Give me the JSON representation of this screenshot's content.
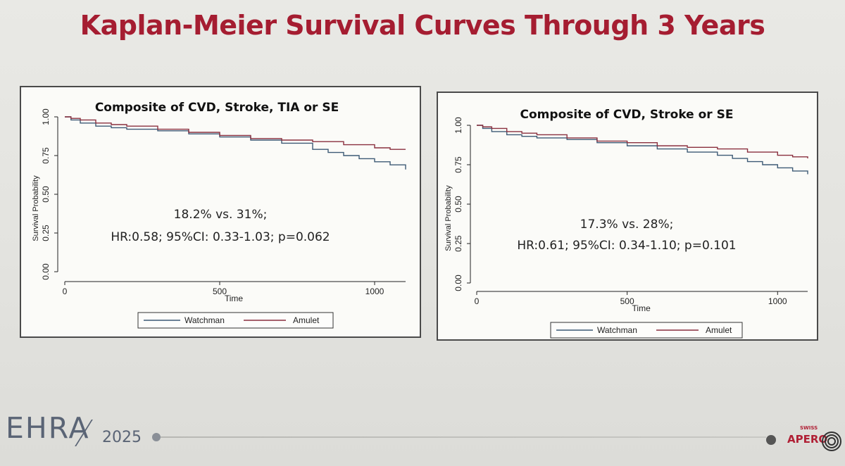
{
  "slide": {
    "title": "Kaplan-Meier Survival Curves Through 3 Years",
    "logo": {
      "brand": "EHRA",
      "year": "2025"
    },
    "partner_logo": {
      "swiss": "SWISS",
      "name": "APERO"
    }
  },
  "colors": {
    "watchman": "#3d5a75",
    "amulet": "#8a2f3e",
    "title": "#a51d31"
  },
  "chart_data": [
    {
      "type": "line",
      "title": "Composite of CVD, Stroke, TIA or SE",
      "xlabel": "Time",
      "ylabel": "Survival Probability",
      "xlim": [
        0,
        1100
      ],
      "ylim": [
        0,
        1
      ],
      "x_ticks": [
        "0",
        "500",
        "1000"
      ],
      "x_tick_values": [
        0,
        500,
        1000
      ],
      "y_ticks": [
        "0.00",
        "0.25",
        "0.50",
        "0.75",
        "1.00"
      ],
      "y_tick_values": [
        0,
        0.25,
        0.5,
        0.75,
        1.0
      ],
      "annotation_line1": "18.2% vs. 31%;",
      "annotation_line2": "HR:0.58; 95%CI: 0.33-1.03; p=0.062",
      "legend": [
        "Watchman",
        "Amulet"
      ],
      "series": [
        {
          "name": "Watchman",
          "x": [
            0,
            20,
            50,
            100,
            150,
            200,
            300,
            400,
            500,
            600,
            700,
            800,
            850,
            900,
            950,
            1000,
            1050,
            1100
          ],
          "y": [
            1.0,
            0.98,
            0.96,
            0.94,
            0.93,
            0.92,
            0.91,
            0.89,
            0.87,
            0.85,
            0.83,
            0.79,
            0.77,
            0.75,
            0.73,
            0.71,
            0.69,
            0.66
          ]
        },
        {
          "name": "Amulet",
          "x": [
            0,
            20,
            50,
            100,
            150,
            200,
            300,
            400,
            500,
            600,
            700,
            800,
            900,
            1000,
            1050,
            1100
          ],
          "y": [
            1.0,
            0.99,
            0.98,
            0.96,
            0.95,
            0.94,
            0.92,
            0.9,
            0.88,
            0.86,
            0.85,
            0.84,
            0.82,
            0.8,
            0.79,
            0.79
          ]
        }
      ]
    },
    {
      "type": "line",
      "title": "Composite of CVD, Stroke or SE",
      "xlabel": "Time",
      "ylabel": "Survival Probability",
      "xlim": [
        0,
        1100
      ],
      "ylim": [
        0,
        1
      ],
      "x_ticks": [
        "0",
        "500",
        "1000"
      ],
      "x_tick_values": [
        0,
        500,
        1000
      ],
      "y_ticks": [
        "0.00",
        "0.25",
        "0.50",
        "0.75",
        "1.00"
      ],
      "y_tick_values": [
        0,
        0.25,
        0.5,
        0.75,
        1.0
      ],
      "annotation_line1": "17.3% vs. 28%;",
      "annotation_line2": "HR:0.61; 95%CI: 0.34-1.10; p=0.101",
      "legend": [
        "Watchman",
        "Amulet"
      ],
      "series": [
        {
          "name": "Watchman",
          "x": [
            0,
            20,
            50,
            100,
            150,
            200,
            300,
            400,
            500,
            600,
            700,
            800,
            850,
            900,
            950,
            1000,
            1050,
            1100
          ],
          "y": [
            1.0,
            0.98,
            0.96,
            0.94,
            0.93,
            0.92,
            0.91,
            0.89,
            0.87,
            0.85,
            0.83,
            0.81,
            0.79,
            0.77,
            0.75,
            0.73,
            0.71,
            0.69
          ]
        },
        {
          "name": "Amulet",
          "x": [
            0,
            20,
            50,
            100,
            150,
            200,
            300,
            400,
            500,
            600,
            700,
            800,
            900,
            1000,
            1050,
            1100
          ],
          "y": [
            1.0,
            0.99,
            0.98,
            0.96,
            0.95,
            0.94,
            0.92,
            0.9,
            0.89,
            0.87,
            0.86,
            0.85,
            0.83,
            0.81,
            0.8,
            0.79
          ]
        }
      ]
    }
  ]
}
